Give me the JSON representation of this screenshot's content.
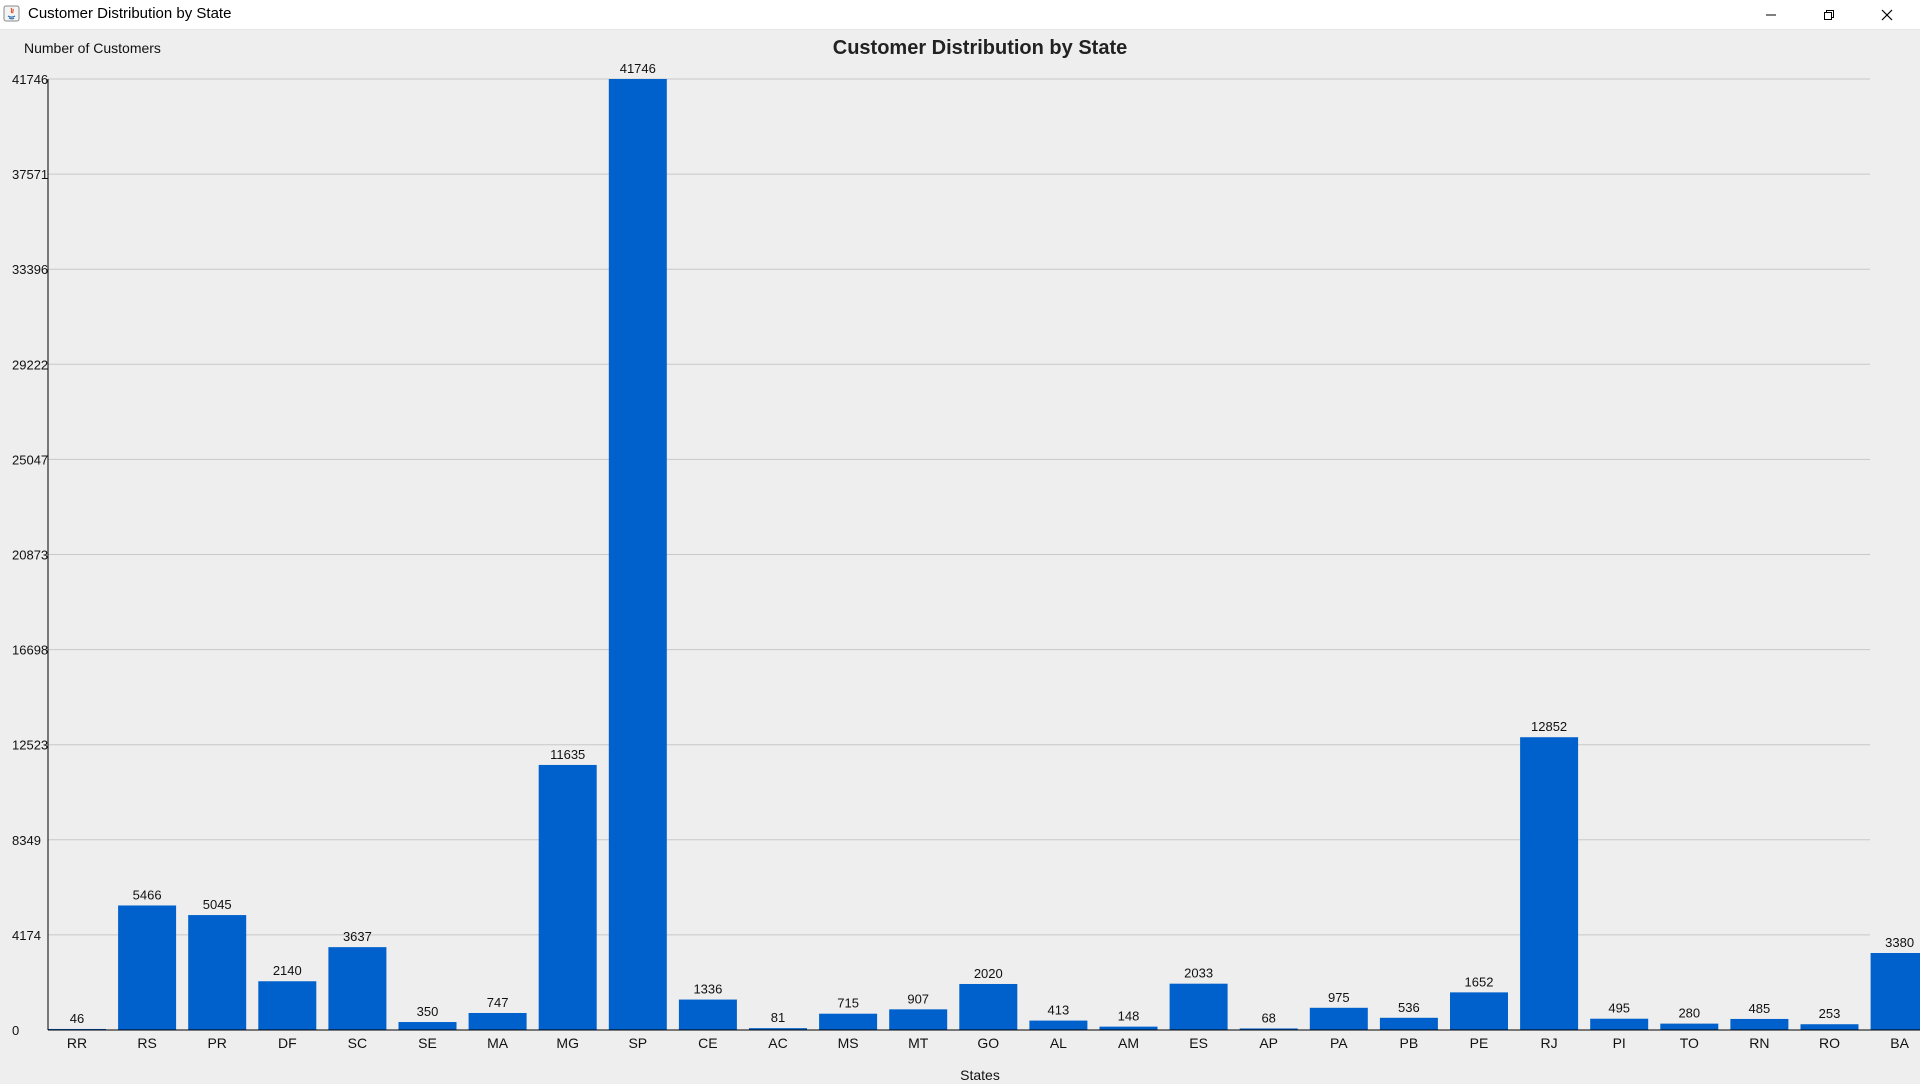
{
  "window": {
    "title": "Customer Distribution by State",
    "icon": "java-app-icon",
    "controls": [
      "minimize-icon",
      "restore-icon",
      "close-icon"
    ]
  },
  "colors": {
    "bar": "#0061cc",
    "grid": "#c8c8c8",
    "background": "#eeeeee",
    "axis": "#000000"
  },
  "chart_data": {
    "type": "bar",
    "title": "Customer Distribution by State",
    "xlabel": "States",
    "ylabel": "Number of Customers",
    "ylim": [
      0,
      41746
    ],
    "yticks": [
      0,
      4174,
      8349,
      12523,
      16698,
      20873,
      25047,
      29222,
      33396,
      37571,
      41746
    ],
    "grid": true,
    "legend": "none",
    "categories": [
      "RR",
      "RS",
      "PR",
      "DF",
      "SC",
      "SE",
      "MA",
      "MG",
      "SP",
      "CE",
      "AC",
      "MS",
      "MT",
      "GO",
      "AL",
      "AM",
      "ES",
      "AP",
      "PA",
      "PB",
      "PE",
      "RJ",
      "PI",
      "TO",
      "RN",
      "RO",
      "BA"
    ],
    "values": [
      46,
      5466,
      5045,
      2140,
      3637,
      350,
      747,
      11635,
      41746,
      1336,
      81,
      715,
      907,
      2020,
      413,
      148,
      2033,
      68,
      975,
      536,
      1652,
      12852,
      495,
      280,
      485,
      253,
      3380
    ],
    "data_labels": true
  }
}
